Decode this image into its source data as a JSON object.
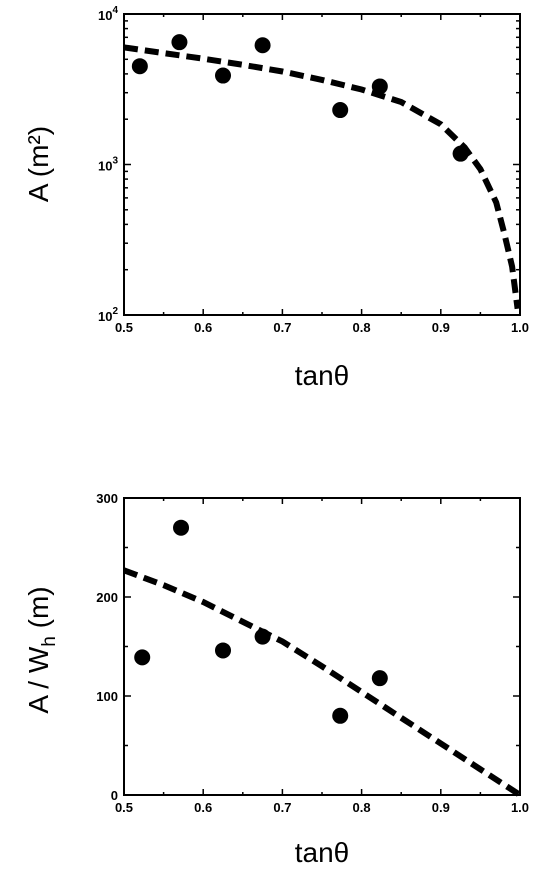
{
  "chart_data": [
    {
      "type": "scatter",
      "xlabel": "tanθ",
      "ylabel": "A (m²)",
      "yscale": "log",
      "xlim": [
        0.5,
        1.0
      ],
      "ylim": [
        100,
        10000
      ],
      "xticks": [
        "0.5",
        "0.6",
        "0.7",
        "0.8",
        "0.9",
        "1.0"
      ],
      "yticks": [
        {
          "value": 100,
          "base": "10",
          "exp": "2"
        },
        {
          "value": 1000,
          "base": "10",
          "exp": "3"
        },
        {
          "value": 10000,
          "base": "10",
          "exp": "4"
        }
      ],
      "points": [
        {
          "x": 0.52,
          "y": 4500
        },
        {
          "x": 0.57,
          "y": 6500
        },
        {
          "x": 0.625,
          "y": 3900
        },
        {
          "x": 0.675,
          "y": 6200
        },
        {
          "x": 0.773,
          "y": 2300
        },
        {
          "x": 0.823,
          "y": 3300
        },
        {
          "x": 0.925,
          "y": 1180
        }
      ],
      "fit_line": {
        "style": "dashed",
        "x": [
          0.5,
          0.55,
          0.6,
          0.65,
          0.7,
          0.75,
          0.8,
          0.85,
          0.9,
          0.93,
          0.95,
          0.97,
          0.98,
          0.99,
          0.997
        ],
        "y": [
          6000,
          5500,
          5050,
          4600,
          4150,
          3650,
          3150,
          2600,
          1850,
          1300,
          930,
          560,
          350,
          210,
          110
        ]
      }
    },
    {
      "type": "scatter",
      "xlabel": "tanθ",
      "ylabel_main": "A / W",
      "ylabel_sub": "h",
      "ylabel_unit": " (m)",
      "xlim": [
        0.5,
        1.0
      ],
      "ylim": [
        0,
        300
      ],
      "xticks": [
        "0.5",
        "0.6",
        "0.7",
        "0.8",
        "0.9",
        "1.0"
      ],
      "yticks": [
        "0",
        "100",
        "200",
        "300"
      ],
      "points": [
        {
          "x": 0.523,
          "y": 139
        },
        {
          "x": 0.572,
          "y": 270
        },
        {
          "x": 0.625,
          "y": 146
        },
        {
          "x": 0.675,
          "y": 160
        },
        {
          "x": 0.773,
          "y": 80
        },
        {
          "x": 0.823,
          "y": 118
        }
      ],
      "fit_line": {
        "style": "dashed",
        "x": [
          0.5,
          0.55,
          0.6,
          0.65,
          0.7,
          0.75,
          0.8,
          0.85,
          0.9,
          0.95,
          1.0
        ],
        "y": [
          227,
          212,
          195,
          175,
          155,
          130,
          104,
          78,
          52,
          26,
          0
        ]
      }
    }
  ]
}
